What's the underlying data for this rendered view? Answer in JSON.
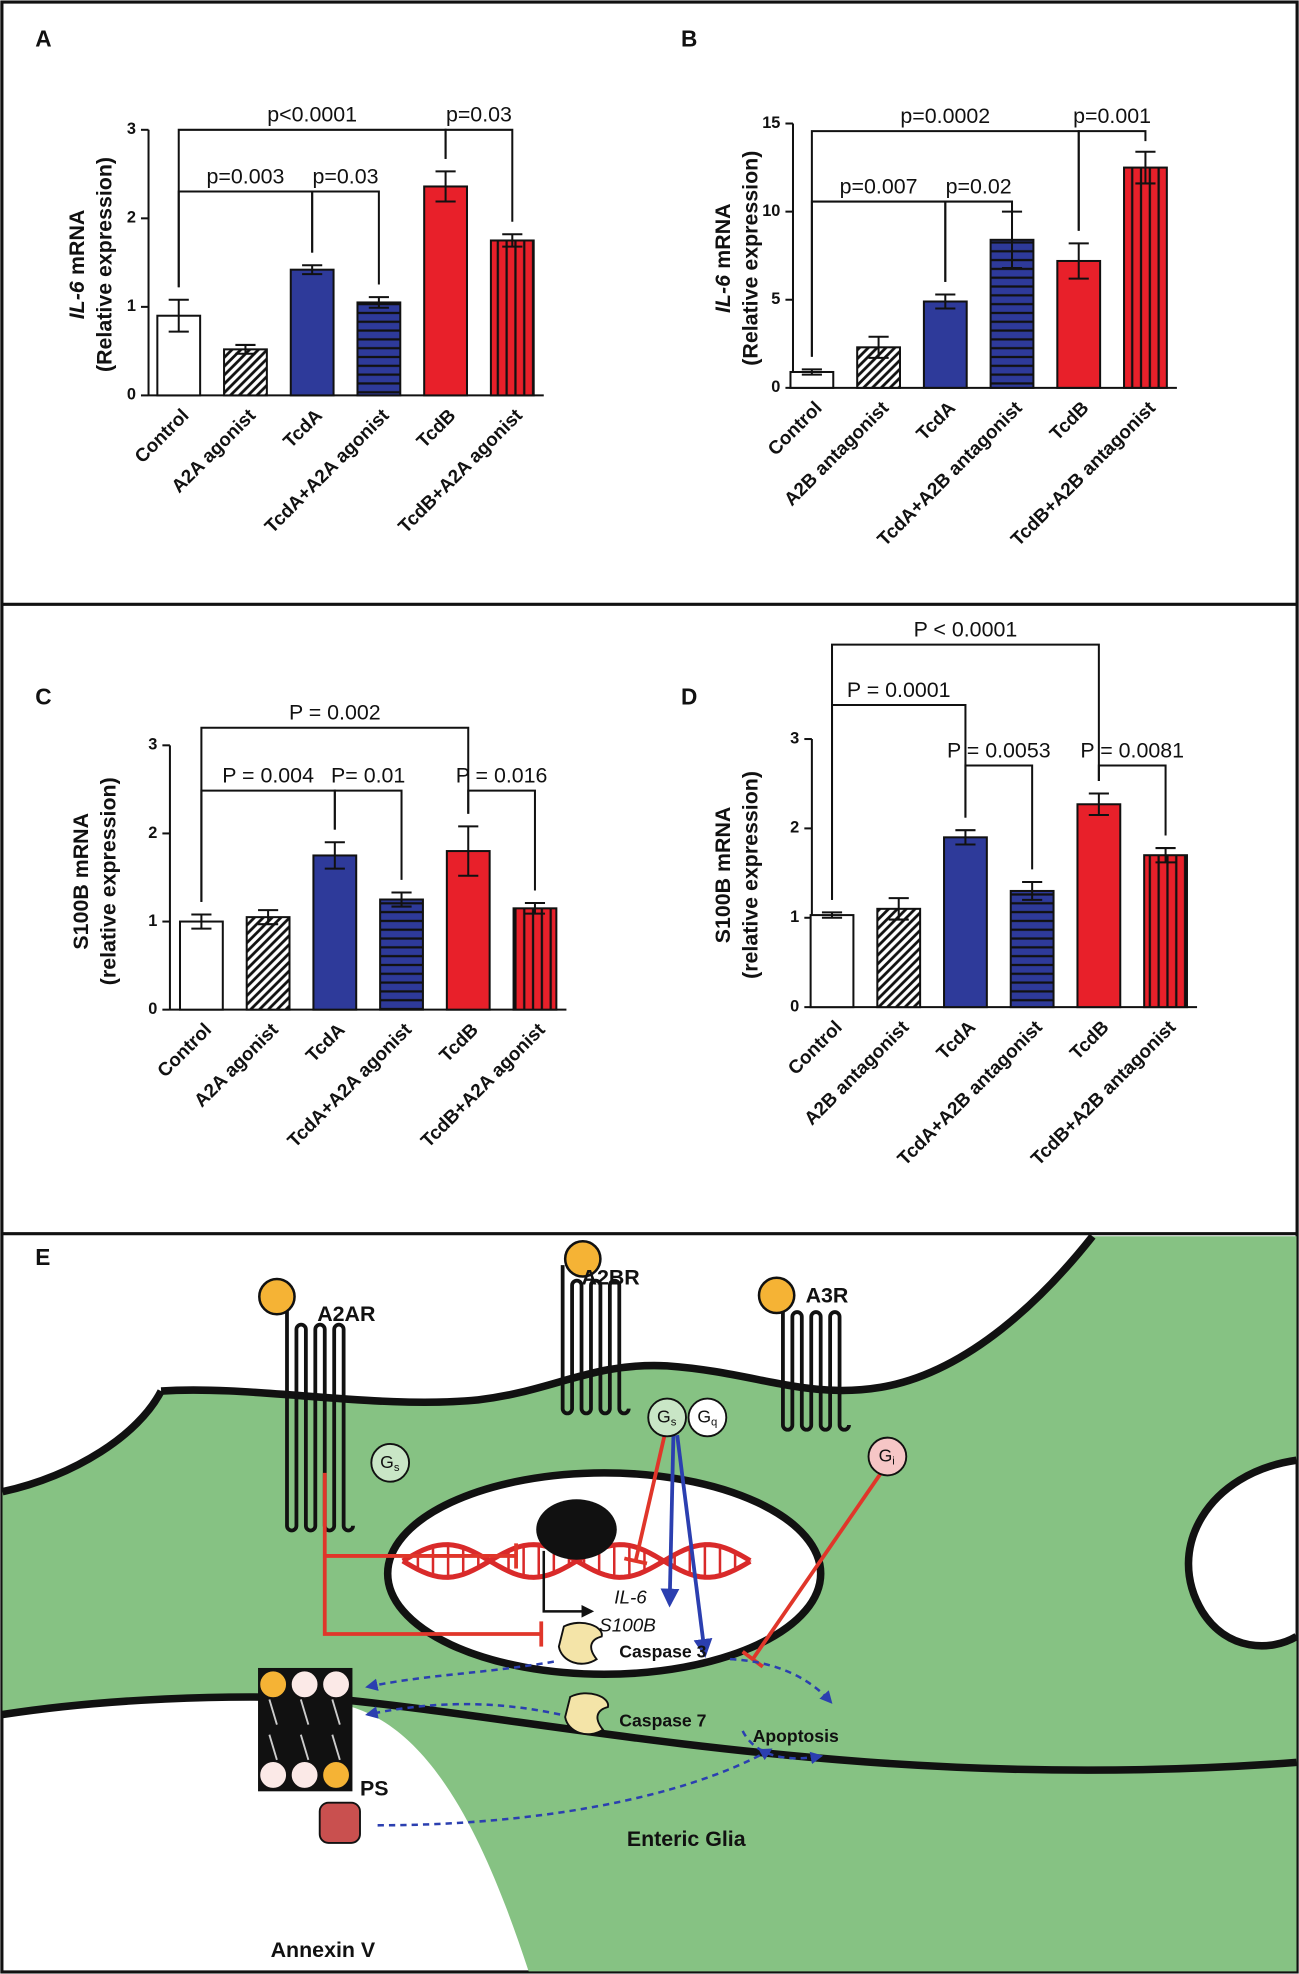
{
  "chart_data": [
    {
      "type": "bar",
      "label": "A",
      "ylabel": [
        [
          {
            "text": "IL-6",
            "italic": true
          },
          {
            "text": "mRNA"
          }
        ],
        [
          {
            "text": "(Relative expression)"
          }
        ]
      ],
      "categories": [
        "Control",
        "A2A agonist",
        "TcdA",
        "TcdA+A2A agonist",
        "TcdB",
        "TcdB+A2A agonist"
      ],
      "values": [
        0.9,
        0.52,
        1.42,
        1.05,
        2.36,
        1.75
      ],
      "errors": [
        0.18,
        0.05,
        0.05,
        0.06,
        0.17,
        0.07
      ],
      "colors": [
        "#ffffff",
        "#ffffff",
        "#2e3a9a",
        "#2e3a9a",
        "#e8202a",
        "#e8202a"
      ],
      "patterns": [
        "none",
        "diagonal",
        "none",
        "horizontal",
        "none",
        "vertical"
      ],
      "ylim": [
        0,
        3
      ],
      "yticks": [
        0,
        1,
        2,
        3
      ],
      "comparisons": [
        {
          "from": 0,
          "to": 4,
          "label": "p<0.0001"
        },
        {
          "from": 4,
          "to": 5,
          "label": "p=0.03"
        },
        {
          "from": 0,
          "to": 2,
          "label": "p=0.003"
        },
        {
          "from": 2,
          "to": 3,
          "label": "p=0.03"
        }
      ]
    },
    {
      "type": "bar",
      "label": "B",
      "ylabel": [
        [
          {
            "text": "IL-6",
            "italic": true
          },
          {
            "text": "mRNA"
          }
        ],
        [
          {
            "text": "(Relative expression)"
          }
        ]
      ],
      "categories": [
        "Control",
        "A2B antagonist",
        "TcdA",
        "TcdA+A2B antagonist",
        "TcdB",
        "TcdB+A2B antagonist"
      ],
      "values": [
        0.9,
        2.3,
        4.9,
        8.4,
        7.2,
        12.5
      ],
      "errors": [
        0.15,
        0.6,
        0.4,
        1.6,
        1.0,
        0.9
      ],
      "colors": [
        "#ffffff",
        "#ffffff",
        "#2e3a9a",
        "#2e3a9a",
        "#e8202a",
        "#e8202a"
      ],
      "patterns": [
        "none",
        "diagonal",
        "none",
        "horizontal",
        "none",
        "vertical"
      ],
      "ylim": [
        0,
        15
      ],
      "yticks": [
        0,
        5,
        10,
        15
      ],
      "comparisons": [
        {
          "from": 0,
          "to": 4,
          "label": "p=0.0002"
        },
        {
          "from": 4,
          "to": 5,
          "label": "p=0.001"
        },
        {
          "from": 0,
          "to": 2,
          "label": "p=0.007"
        },
        {
          "from": 2,
          "to": 3,
          "label": "p=0.02"
        }
      ]
    },
    {
      "type": "bar",
      "label": "C",
      "ylabel": [
        [
          {
            "text": "S100B mRNA"
          }
        ],
        [
          {
            "text": "(relative expression)"
          }
        ]
      ],
      "categories": [
        "Control",
        "A2A agonist",
        "TcdA",
        "TcdA+A2A agonist",
        "TcdB",
        "TcdB+A2A agonist"
      ],
      "values": [
        1.0,
        1.05,
        1.75,
        1.25,
        1.8,
        1.15
      ],
      "errors": [
        0.08,
        0.08,
        0.15,
        0.08,
        0.28,
        0.06
      ],
      "colors": [
        "#ffffff",
        "#ffffff",
        "#2e3a9a",
        "#2e3a9a",
        "#e8202a",
        "#e8202a"
      ],
      "patterns": [
        "none",
        "diagonal",
        "none",
        "horizontal",
        "none",
        "vertical"
      ],
      "ylim": [
        0,
        3
      ],
      "yticks": [
        0,
        1,
        2,
        3
      ],
      "comparisons": [
        {
          "from": 0,
          "to": 4,
          "label": "P = 0.002"
        },
        {
          "from": 0,
          "to": 2,
          "label": "P = 0.004"
        },
        {
          "from": 2,
          "to": 3,
          "label": "P= 0.01"
        },
        {
          "from": 4,
          "to": 5,
          "label": "P = 0.016"
        }
      ]
    },
    {
      "type": "bar",
      "label": "D",
      "ylabel": [
        [
          {
            "text": "S100B mRNA"
          }
        ],
        [
          {
            "text": "(relative expression)"
          }
        ]
      ],
      "categories": [
        "Control",
        "A2B antagonist",
        "TcdA",
        "TcdA+A2B antagonist",
        "TcdB",
        "TcdB+A2B antagonist"
      ],
      "values": [
        1.03,
        1.1,
        1.9,
        1.3,
        2.27,
        1.7
      ],
      "errors": [
        0.03,
        0.12,
        0.08,
        0.1,
        0.12,
        0.08
      ],
      "colors": [
        "#ffffff",
        "#ffffff",
        "#2e3a9a",
        "#2e3a9a",
        "#e8202a",
        "#e8202a"
      ],
      "patterns": [
        "none",
        "diagonal",
        "none",
        "horizontal",
        "none",
        "vertical"
      ],
      "ylim": [
        0,
        3
      ],
      "yticks": [
        0,
        1,
        2,
        3
      ],
      "comparisons": [
        {
          "from": 0,
          "to": 4,
          "label": "P < 0.0001"
        },
        {
          "from": 0,
          "to": 2,
          "label": "P = 0.0001"
        },
        {
          "from": 2,
          "to": 3,
          "label": "P = 0.0053"
        },
        {
          "from": 4,
          "to": 5,
          "label": "P = 0.0081"
        }
      ]
    }
  ],
  "diagram": {
    "label": "E",
    "receptors": [
      "A2AR",
      "A2BR",
      "A3R"
    ],
    "proteins": [
      {
        "base": "G",
        "sub": "s"
      },
      {
        "base": "G",
        "sub": "s"
      },
      {
        "base": "G",
        "sub": "q"
      },
      {
        "base": "G",
        "sub": "i"
      }
    ],
    "genes": [
      "IL-6",
      "S100B"
    ],
    "caspases": [
      "Caspase 3",
      "Caspase 7"
    ],
    "apoptosis": "Apoptosis",
    "ps": "PS",
    "annexin": "Annexin V",
    "cell": "Enteric Glia"
  }
}
